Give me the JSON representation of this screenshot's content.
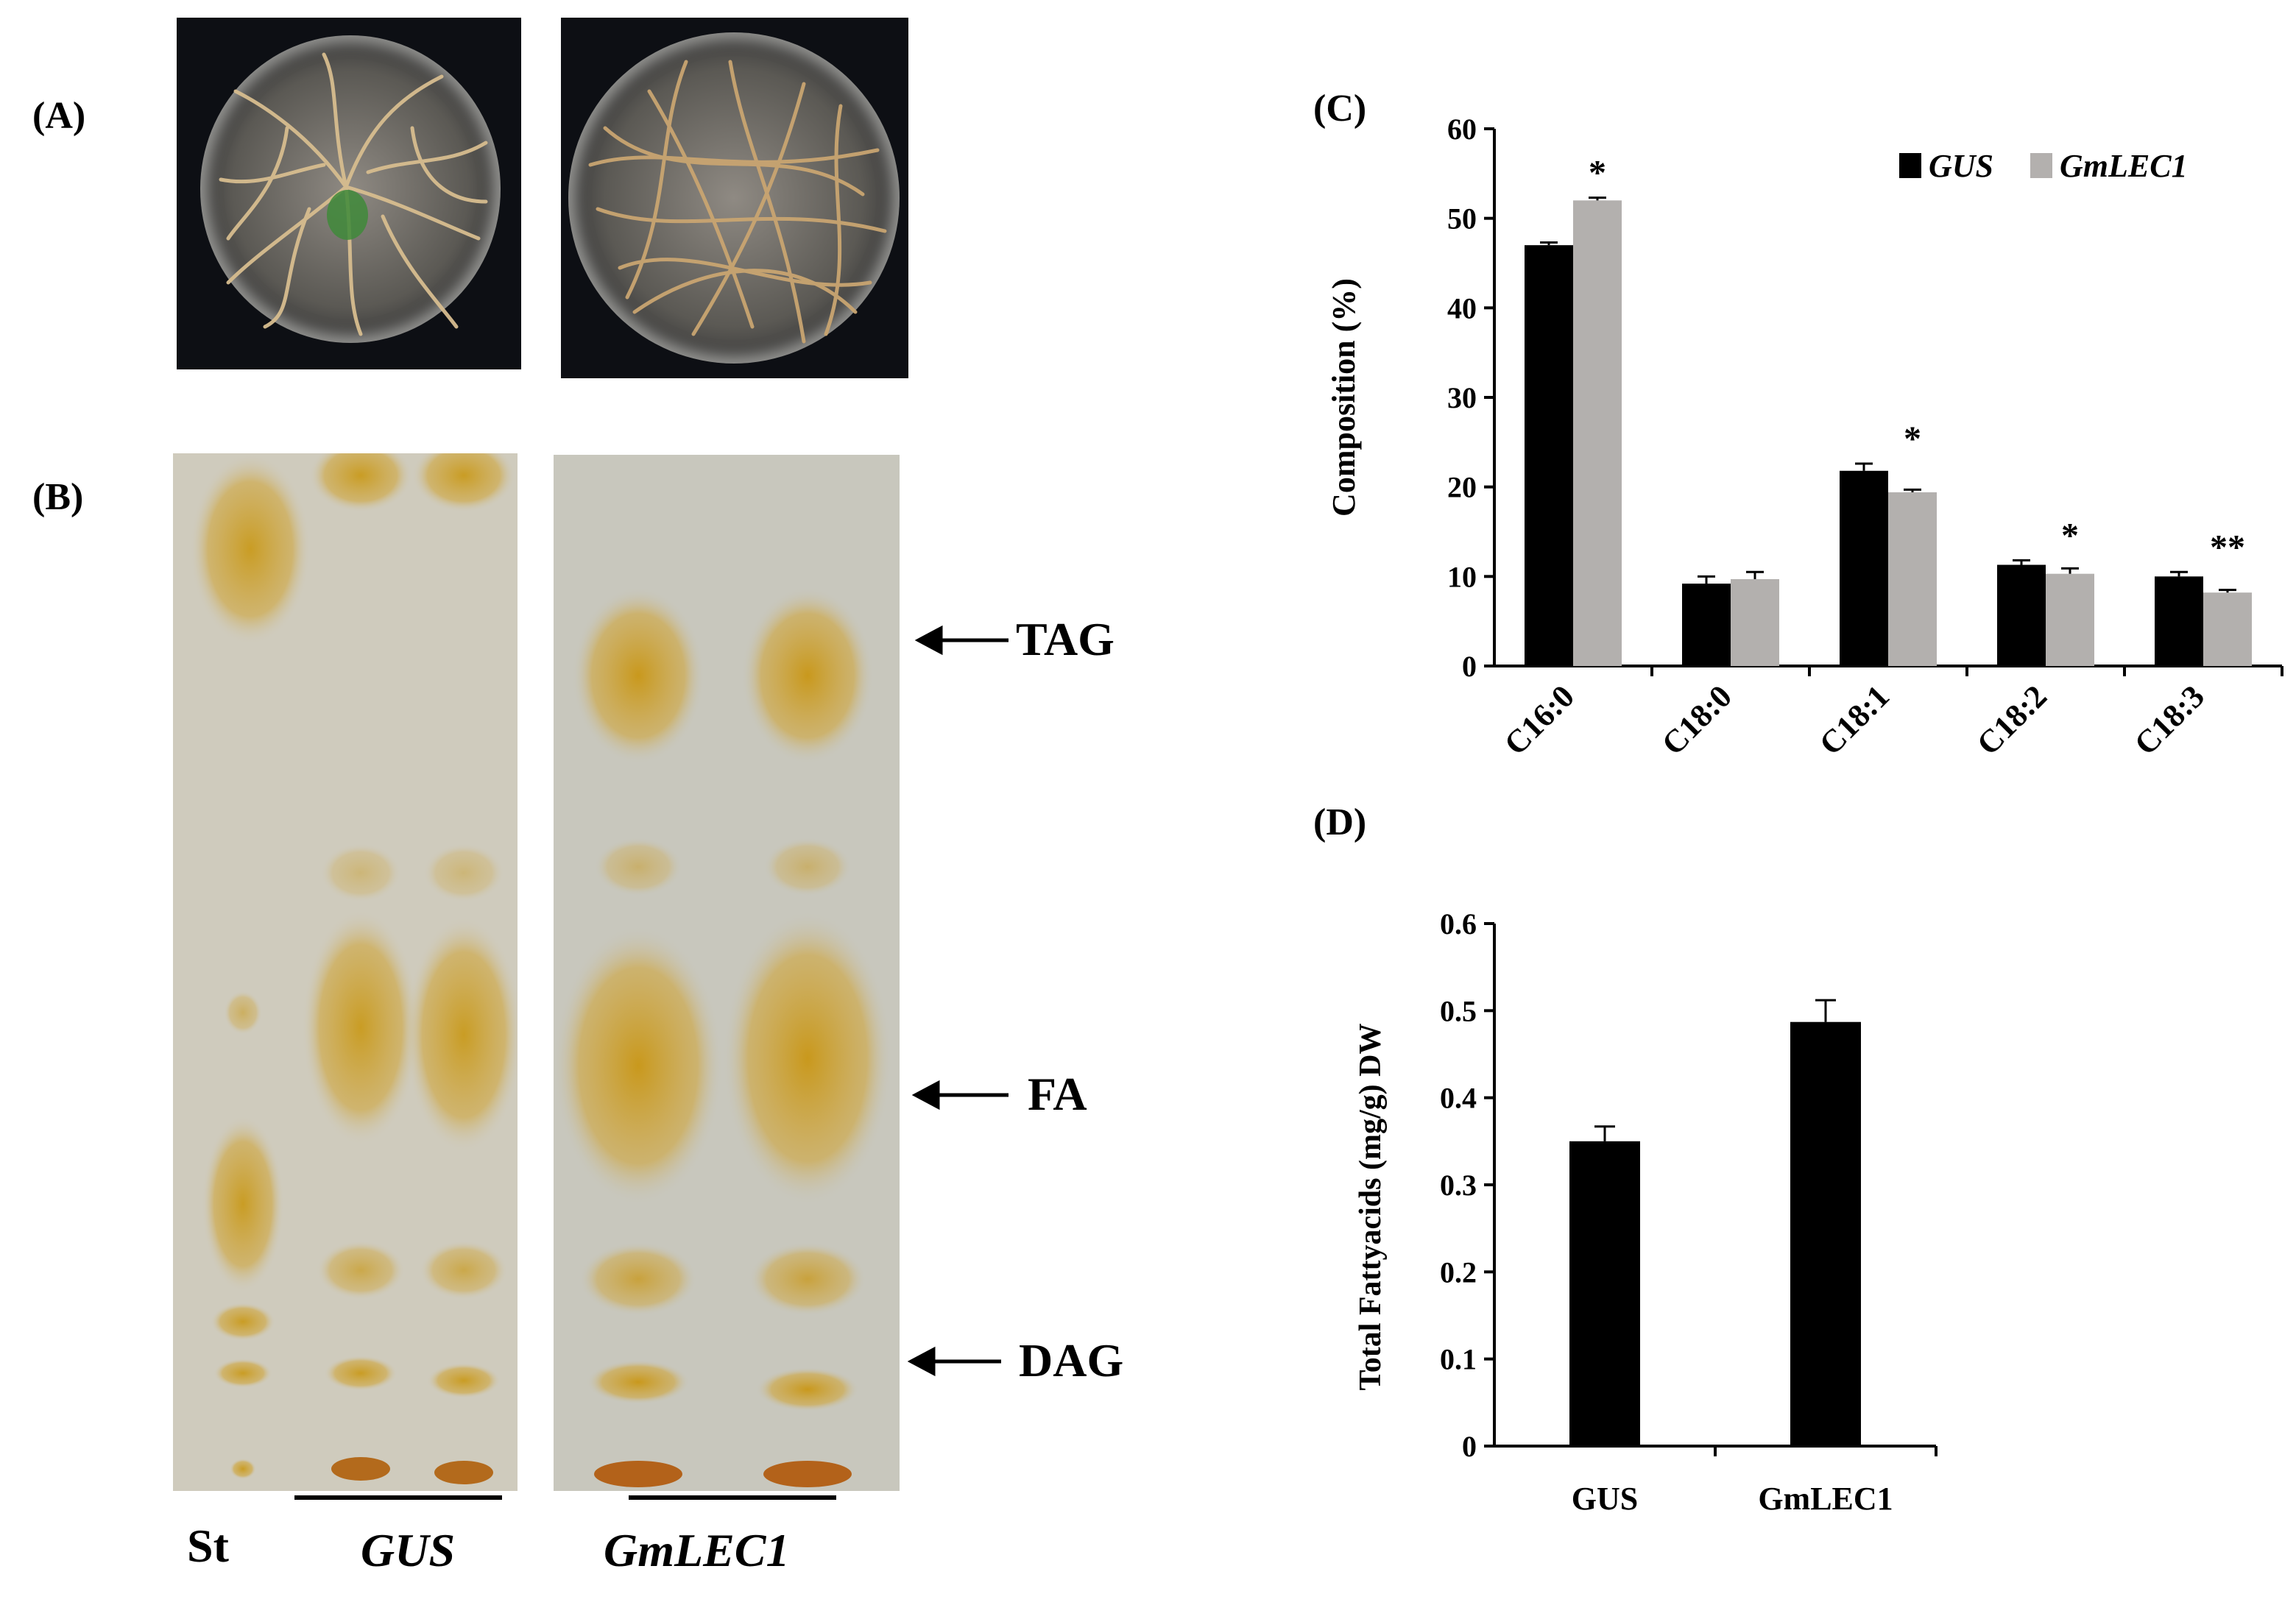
{
  "panel_labels": {
    "a": "(A)",
    "b": "(B)",
    "c": "(C)",
    "d": "(D)"
  },
  "panel_b": {
    "bands": {
      "tag": "TAG",
      "fa": "FA",
      "dag": "DAG"
    },
    "lanes": {
      "st": "St",
      "gus": "GUS",
      "gmlec1": "GmLEC1"
    }
  },
  "colors": {
    "gus": "#000000",
    "gmlec1": "#b3b0ae",
    "tlc_background": "#cfcbbd",
    "tlc_spot": "#c89a1c",
    "photo_background": "#0d0f14"
  },
  "chart_data": [
    {
      "id": "C",
      "type": "bar",
      "categories": [
        "C16:0",
        "C18:0",
        "C18:1",
        "C18:2",
        "C18:3"
      ],
      "series": [
        {
          "name": "GUS",
          "values": [
            47.0,
            9.2,
            21.8,
            11.3,
            10.0
          ],
          "errors": [
            0.3,
            0.8,
            0.8,
            0.5,
            0.5
          ]
        },
        {
          "name": "GmLEC1",
          "values": [
            52.0,
            9.7,
            19.4,
            10.3,
            8.2
          ],
          "errors": [
            0.3,
            0.8,
            0.3,
            0.6,
            0.3
          ]
        }
      ],
      "significance": [
        "*",
        "",
        "*",
        "*",
        "**"
      ],
      "ylabel": "Composition (%)",
      "ylim": [
        0,
        60
      ],
      "yticks": [
        "0",
        "10",
        "20",
        "30",
        "40",
        "50",
        "60"
      ],
      "legend": "top-right",
      "grid": false
    },
    {
      "id": "D",
      "type": "bar",
      "categories": [
        "GUS",
        "GmLEC1"
      ],
      "values": [
        0.35,
        0.487
      ],
      "errors": [
        0.017,
        0.025
      ],
      "ylabel": "Total Fattyacids (mg/g) DW",
      "ylim": [
        0,
        0.6
      ],
      "yticks": [
        "0",
        "0.1",
        "0.2",
        "0.3",
        "0.4",
        "0.5",
        "0.6"
      ],
      "grid": false
    }
  ]
}
